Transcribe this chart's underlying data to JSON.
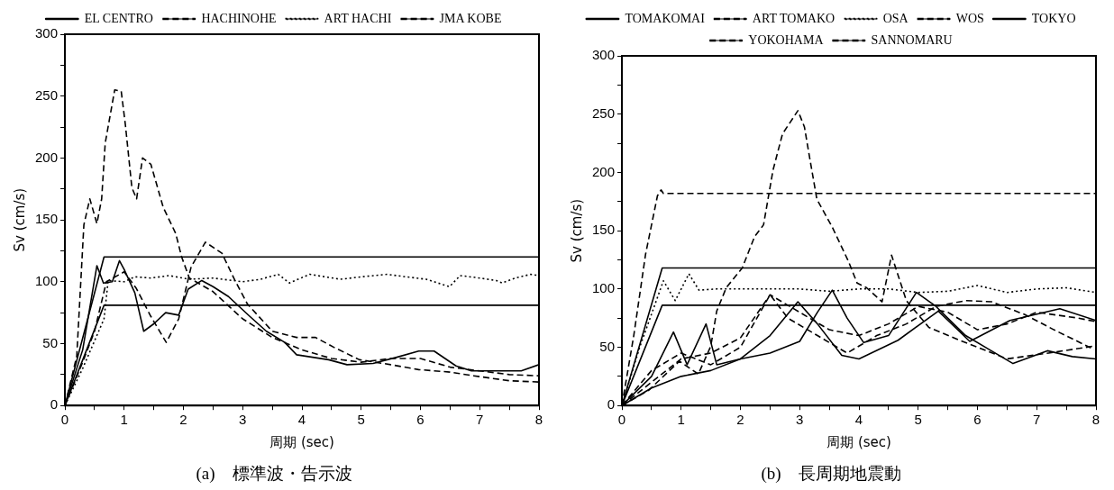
{
  "chart_data": [
    {
      "type": "line",
      "title": "(a)　標準波・告示波",
      "xlabel": "周期 (sec)",
      "ylabel": "Sv (cm/s)",
      "legend": "top",
      "xlim": [
        0,
        8
      ],
      "ylim": [
        0,
        300
      ],
      "xticks": [
        0,
        {
          "value": 0.5,
          "label": null
        },
        1,
        {
          "value": 1.5,
          "label": null
        },
        2,
        {
          "value": 2.5,
          "label": null
        },
        3,
        {
          "value": 3.5,
          "label": null
        },
        4,
        {
          "value": 4.5,
          "label": null
        },
        5,
        {
          "value": 5.5,
          "label": null
        },
        6,
        {
          "value": 6.5,
          "label": null
        },
        7,
        {
          "value": 7.5,
          "label": null
        },
        8
      ],
      "yticks": [
        0,
        {
          "value": 25,
          "label": null
        },
        50,
        {
          "value": 75,
          "label": null
        },
        100,
        {
          "value": 125,
          "label": null
        },
        150,
        {
          "value": 175,
          "label": null
        },
        200,
        {
          "value": 225,
          "label": null
        },
        250,
        {
          "value": 275,
          "label": null
        },
        300
      ],
      "series": [
        {
          "name": "EL CENTRO",
          "color": "#000000",
          "line_style": "solid",
          "x": [
            0,
            0.3,
            0.54,
            0.65,
            0.8,
            0.92,
            1.0,
            1.18,
            1.33,
            1.5,
            1.7,
            1.92,
            2.08,
            2.31,
            2.5,
            2.76,
            3.12,
            3.4,
            3.71,
            3.91,
            4.45,
            4.76,
            5.2,
            5.6,
            5.97,
            6.23,
            6.6,
            6.86,
            7.3,
            7.7,
            8
          ],
          "values": [
            0,
            45,
            113,
            99,
            100,
            117,
            110,
            91,
            60,
            66,
            75,
            73,
            94,
            101,
            96,
            88,
            72,
            60,
            51,
            41,
            37,
            33,
            34,
            39,
            44,
            44,
            32,
            28,
            28,
            28,
            33
          ]
        },
        {
          "name": "HACHINOHE",
          "color": "#000000",
          "line_style": "dashed",
          "x": [
            0,
            0.3,
            0.5,
            0.7,
            1.0,
            1.2,
            1.45,
            1.71,
            1.92,
            2.13,
            2.37,
            2.65,
            2.87,
            3.08,
            3.5,
            3.91,
            4.23,
            4.54,
            4.97,
            5.5,
            5.97,
            6.5,
            6.9,
            7.5,
            8
          ],
          "values": [
            0,
            35,
            60,
            100,
            108,
            95,
            72,
            51,
            70,
            112,
            132,
            123,
            101,
            82,
            60,
            55,
            55,
            47,
            37,
            33,
            29,
            27,
            24,
            20,
            19
          ]
        },
        {
          "name": "ART HACHI",
          "color": "#000000",
          "line_style": "dotted",
          "x": [
            0,
            0.3,
            0.66,
            0.73,
            1.0,
            1.18,
            1.45,
            1.76,
            2.1,
            2.5,
            3.0,
            3.3,
            3.6,
            3.79,
            4.13,
            4.65,
            5.0,
            5.44,
            5.75,
            6.1,
            6.49,
            6.67,
            7.0,
            7.28,
            7.38,
            7.6,
            7.86,
            8
          ],
          "values": [
            0,
            30,
            70,
            101,
            100,
            104,
            103,
            105,
            102,
            103,
            100,
            102,
            106,
            99,
            106,
            102,
            104,
            106,
            104,
            102,
            96,
            105,
            103,
            101,
            99,
            103,
            106,
            105
          ]
        },
        {
          "name": "JMA KOBE",
          "color": "#000000",
          "line_style": "dashed",
          "x": [
            0,
            0.2,
            0.32,
            0.42,
            0.54,
            0.62,
            0.68,
            0.84,
            0.95,
            1.02,
            1.13,
            1.21,
            1.31,
            1.45,
            1.66,
            1.87,
            1.97,
            2.1,
            2.5,
            3.0,
            3.5,
            4.0,
            4.5,
            5.0,
            5.5,
            6.0,
            6.5,
            7.0,
            7.5,
            8
          ],
          "values": [
            0,
            40,
            146,
            167,
            147,
            167,
            212,
            255,
            254,
            227,
            176,
            167,
            200,
            195,
            160,
            139,
            120,
            103,
            92,
            70,
            55,
            45,
            38,
            35,
            38,
            38,
            31,
            28,
            25,
            24
          ]
        },
        {
          "name": null,
          "color": "#000000",
          "line_style": "solid",
          "x": [
            0,
            0.66,
            8
          ],
          "values": [
            0,
            120,
            120
          ]
        },
        {
          "name": null,
          "color": "#000000",
          "line_style": "solid",
          "x": [
            0,
            0.66,
            8
          ],
          "values": [
            0,
            81,
            81
          ]
        }
      ]
    },
    {
      "type": "line",
      "title": "(b)　長周期地震動",
      "xlabel": "周期 (sec)",
      "ylabel": "Sv (cm/s)",
      "legend": "top",
      "xlim": [
        0,
        8
      ],
      "ylim": [
        0,
        300
      ],
      "xticks": [
        0,
        {
          "value": 0.5,
          "label": null
        },
        1,
        {
          "value": 1.5,
          "label": null
        },
        2,
        {
          "value": 2.5,
          "label": null
        },
        3,
        {
          "value": 3.5,
          "label": null
        },
        4,
        {
          "value": 4.5,
          "label": null
        },
        5,
        {
          "value": 5.5,
          "label": null
        },
        6,
        {
          "value": 6.5,
          "label": null
        },
        7,
        {
          "value": 7.5,
          "label": null
        },
        8
      ],
      "yticks": [
        0,
        {
          "value": 25,
          "label": null
        },
        50,
        {
          "value": 75,
          "label": null
        },
        100,
        {
          "value": 125,
          "label": null
        },
        150,
        {
          "value": 175,
          "label": null
        },
        200,
        {
          "value": 225,
          "label": null
        },
        250,
        {
          "value": 275,
          "label": null
        },
        300
      ],
      "series": [
        {
          "name": "TOMAKOMAI",
          "color": "#000000",
          "line_style": "solid",
          "x": [
            0,
            0.5,
            0.87,
            1.1,
            1.42,
            1.6,
            2.0,
            2.5,
            3.0,
            3.3,
            3.55,
            3.8,
            4.08,
            4.5,
            4.97,
            5.3,
            5.8,
            6.2,
            6.6,
            7.18,
            7.6,
            8
          ],
          "values": [
            0,
            25,
            63,
            35,
            70,
            35,
            40,
            45,
            55,
            80,
            99,
            75,
            54,
            60,
            97,
            85,
            60,
            48,
            36,
            47,
            42,
            40
          ]
        },
        {
          "name": "ART TOMAKO",
          "color": "#000000",
          "line_style": "dashed",
          "x": [
            0,
            0.45,
            0.97,
            1.29,
            1.5,
            1.6,
            1.76,
            2.03,
            2.24,
            2.39,
            2.55,
            2.71,
            2.97,
            3.08,
            3.16,
            3.29,
            3.55,
            3.82,
            3.97,
            4.13,
            4.39,
            4.55,
            4.8,
            5.18,
            5.7,
            6.5,
            7.2,
            7.97
          ],
          "values": [
            0,
            13,
            38,
            27,
            51,
            81,
            101,
            118,
            145,
            155,
            202,
            233,
            253,
            239,
            215,
            177,
            153,
            124,
            105,
            101,
            89,
            129,
            90,
            67,
            56,
            40,
            45,
            51
          ]
        },
        {
          "name": "OSA",
          "color": "#000000",
          "line_style": "dotted",
          "x": [
            0,
            0.3,
            0.7,
            0.9,
            1.13,
            1.3,
            1.6,
            2.0,
            2.5,
            3.0,
            3.5,
            4.0,
            4.5,
            5.0,
            5.5,
            6.0,
            6.5,
            7.0,
            7.5,
            8
          ],
          "values": [
            0,
            50,
            107,
            90,
            113,
            99,
            100,
            100,
            100,
            100,
            98,
            100,
            100,
            97,
            98,
            103,
            97,
            100,
            101,
            97
          ]
        },
        {
          "name": "WOS",
          "color": "#000000",
          "line_style": "dashed",
          "x": [
            0,
            0.5,
            1.0,
            1.5,
            2.0,
            2.5,
            2.8,
            3.3,
            3.8,
            4.3,
            4.8,
            5.3,
            5.8,
            6.24,
            6.8,
            7.29,
            7.97
          ],
          "values": [
            0,
            30,
            45,
            35,
            50,
            95,
            75,
            60,
            45,
            60,
            70,
            85,
            90,
            89,
            78,
            65,
            48
          ]
        },
        {
          "name": "TOKYO",
          "color": "#000000",
          "line_style": "solid",
          "x": [
            0,
            0.5,
            1.0,
            1.5,
            2.0,
            2.5,
            2.97,
            3.3,
            3.71,
            4.0,
            4.66,
            5.34,
            5.87,
            6.55,
            7.39,
            8
          ],
          "values": [
            0,
            15,
            25,
            30,
            40,
            60,
            89,
            70,
            43,
            40,
            56,
            81,
            55,
            73,
            83,
            73
          ]
        },
        {
          "name": "YOKOHAMA",
          "color": "#000000",
          "line_style": "dashed",
          "x": [
            0,
            0.5,
            1.0,
            1.5,
            2.0,
            2.5,
            3.0,
            3.5,
            4.0,
            4.5,
            5.0,
            5.5,
            6.0,
            6.5,
            7.0,
            7.7,
            8
          ],
          "values": [
            0,
            20,
            40,
            45,
            58,
            95,
            80,
            65,
            60,
            70,
            85,
            80,
            65,
            70,
            80,
            75,
            72
          ]
        },
        {
          "name": "SANNOMARU",
          "color": "#000000",
          "line_style": "dashed",
          "x": [
            0,
            0.2,
            0.4,
            0.6,
            0.66,
            0.7,
            8
          ],
          "values": [
            0,
            60,
            130,
            180,
            185,
            182,
            182
          ]
        },
        {
          "name": null,
          "color": "#000000",
          "line_style": "solid",
          "x": [
            0,
            0.68,
            8
          ],
          "values": [
            0,
            118,
            118
          ]
        },
        {
          "name": null,
          "color": "#000000",
          "line_style": "solid",
          "x": [
            0,
            0.68,
            8
          ],
          "values": [
            0,
            86,
            86
          ]
        }
      ]
    }
  ]
}
